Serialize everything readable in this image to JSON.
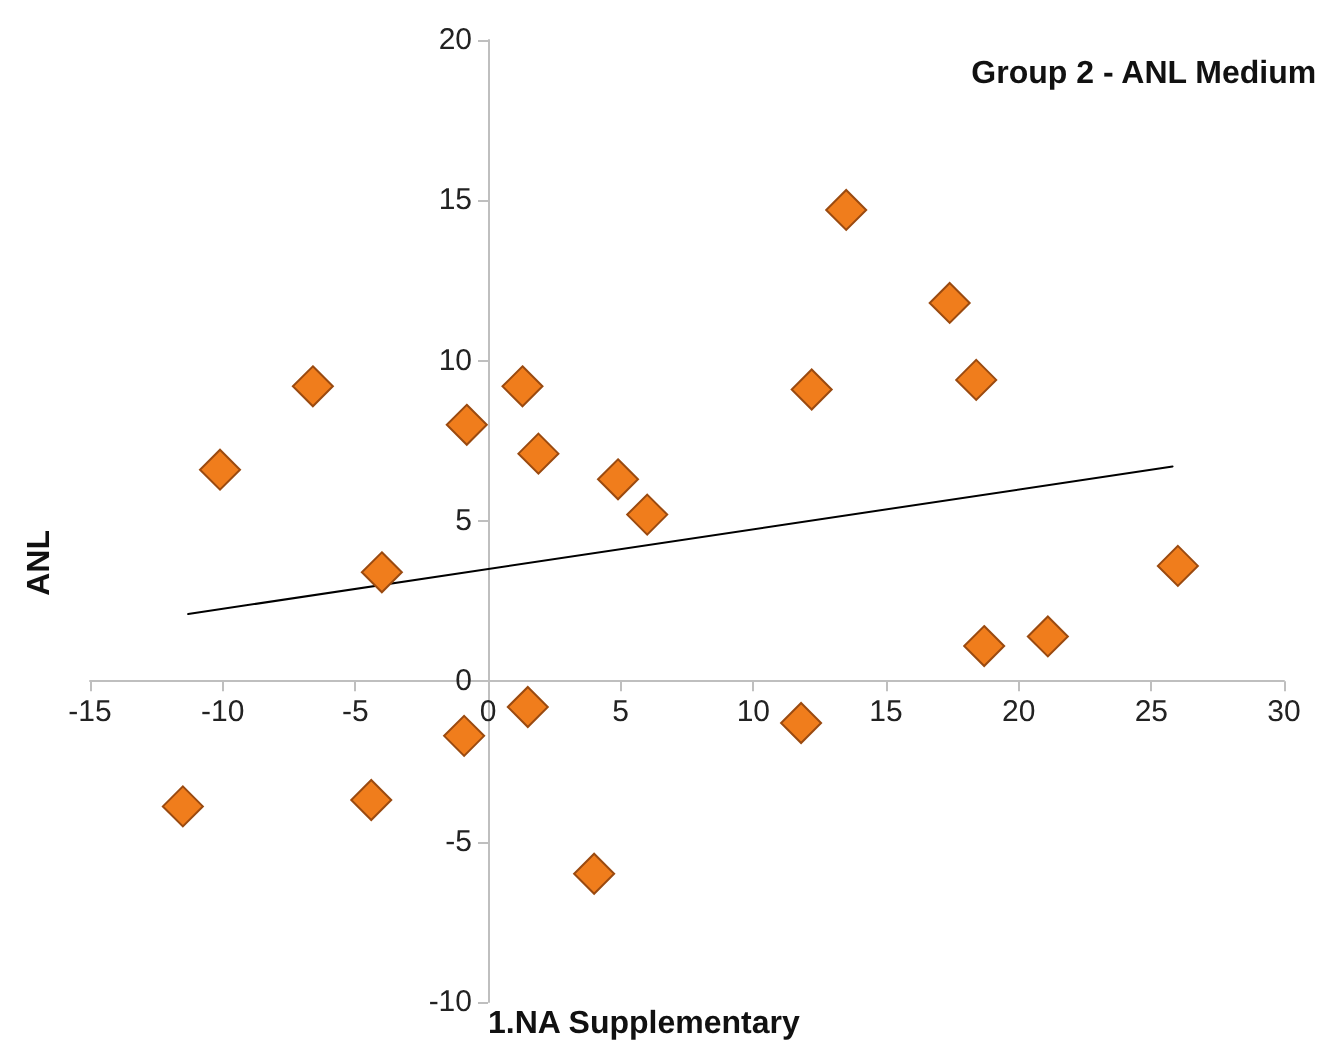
{
  "chart_data": {
    "type": "scatter",
    "title": "Group 2 - ANL Medium",
    "xlabel": "1.NA Supplementary",
    "ylabel": "ANL",
    "xlim": [
      -15,
      30
    ],
    "xticks": [
      -15,
      -10,
      -5,
      0,
      5,
      10,
      15,
      20,
      25,
      30
    ],
    "ylim": [
      -10,
      20
    ],
    "yticks": [
      -10,
      -5,
      0,
      5,
      10,
      15,
      20
    ],
    "grid": false,
    "marker": "diamond",
    "series": [
      {
        "color": "#f07d1c",
        "x": [
          -11.5,
          -10.1,
          -6.6,
          -4.0,
          -4.4,
          -0.8,
          -0.9,
          1.3,
          1.9,
          1.5,
          4.9,
          6.0,
          4.0,
          12.2,
          11.8,
          13.5,
          17.4,
          18.4,
          18.7,
          21.1,
          26.0
        ],
        "values": [
          -3.9,
          6.6,
          9.2,
          3.4,
          -3.7,
          8.0,
          -1.7,
          9.2,
          7.1,
          -0.8,
          6.3,
          5.2,
          -6.0,
          9.1,
          -1.3,
          14.7,
          11.8,
          9.4,
          1.1,
          1.4,
          3.6
        ]
      },
      {
        "type": "line",
        "color": "#000000",
        "line_style": "solid",
        "marker": "none",
        "x": [
          -11.3,
          25.8
        ],
        "values": [
          2.1,
          6.7
        ]
      }
    ]
  }
}
